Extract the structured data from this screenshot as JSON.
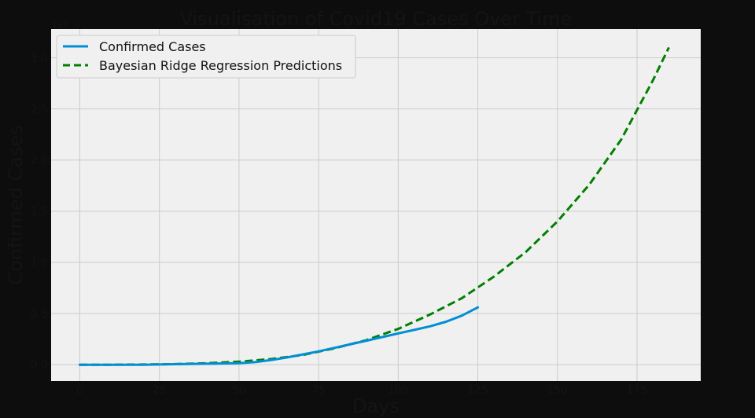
{
  "chart_data": {
    "type": "line",
    "title": "Visualisation of Covid19 Cases Over Time",
    "xlabel": "Days",
    "ylabel": "Confirmed Cases",
    "y_scale_note": "1e7",
    "xlim": [
      -9,
      195
    ],
    "ylim": [
      -0.16,
      3.28
    ],
    "xticks": [
      0,
      25,
      50,
      75,
      100,
      125,
      150,
      175
    ],
    "yticks": [
      0.0,
      0.5,
      1.0,
      1.5,
      2.0,
      2.5,
      3.0
    ],
    "ytick_labels": [
      "0.0",
      "0.5",
      "1.0",
      "1.5",
      "2.0",
      "2.5",
      "3.0"
    ],
    "grid": true,
    "legend_position": "top-left",
    "colors": {
      "confirmed": "#008fd5",
      "predicted": "#008000",
      "plot_bg": "#f0f0f0",
      "page_bg": "#0d0d0d",
      "grid": "#cbcbcb"
    },
    "series": [
      {
        "name": "Confirmed Cases",
        "style": "solid",
        "x": [
          0,
          10,
          20,
          30,
          40,
          50,
          55,
          60,
          65,
          70,
          75,
          80,
          85,
          90,
          95,
          100,
          105,
          110,
          115,
          120,
          125
        ],
        "y": [
          0.0,
          0.0,
          0.0,
          0.005,
          0.01,
          0.015,
          0.025,
          0.045,
          0.07,
          0.1,
          0.13,
          0.165,
          0.2,
          0.235,
          0.27,
          0.305,
          0.34,
          0.375,
          0.42,
          0.48,
          0.56
        ]
      },
      {
        "name": "Bayesian Ridge Regression Predictions",
        "style": "dashed",
        "x": [
          0,
          10,
          20,
          30,
          40,
          50,
          60,
          70,
          80,
          90,
          100,
          110,
          120,
          130,
          140,
          150,
          160,
          170,
          180,
          185
        ],
        "y": [
          0.0,
          0.0,
          0.002,
          0.006,
          0.014,
          0.03,
          0.055,
          0.095,
          0.16,
          0.24,
          0.35,
          0.49,
          0.65,
          0.86,
          1.1,
          1.4,
          1.76,
          2.2,
          2.78,
          3.1
        ]
      }
    ]
  }
}
